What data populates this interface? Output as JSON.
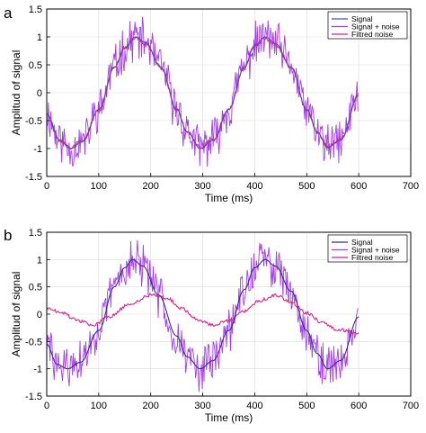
{
  "chart_data": [
    {
      "type": "line",
      "panel_label": "a",
      "xlabel": "Time (ms)",
      "ylabel": "Amplitud of signal",
      "xlim": [
        0,
        700
      ],
      "ylim": [
        -1.5,
        1.5
      ],
      "xticks": [
        0,
        100,
        200,
        300,
        400,
        500,
        600,
        700
      ],
      "yticks": [
        -1.5,
        -1,
        -0.5,
        0,
        0.5,
        1,
        1.5
      ],
      "legend_position": "top-right",
      "series": [
        {
          "name": "Signal",
          "color": "#5b4bb0",
          "x": [
            0,
            25,
            45,
            70,
            100,
            130,
            150,
            170,
            190,
            220,
            250,
            270,
            295,
            320,
            350,
            380,
            400,
            420,
            440,
            470,
            500,
            520,
            540,
            565,
            600
          ],
          "y": [
            -0.38,
            -0.85,
            -1.0,
            -0.87,
            -0.3,
            0.45,
            0.8,
            1.0,
            0.9,
            0.45,
            -0.3,
            -0.7,
            -1.0,
            -0.85,
            -0.3,
            0.45,
            0.85,
            1.0,
            0.88,
            0.45,
            -0.3,
            -0.7,
            -0.98,
            -0.85,
            -0.05
          ]
        },
        {
          "name": "Signal + noise",
          "color": "#a43cf0",
          "x": [
            0,
            25,
            45,
            70,
            100,
            130,
            150,
            170,
            190,
            220,
            250,
            270,
            295,
            320,
            350,
            380,
            400,
            420,
            440,
            470,
            500,
            520,
            540,
            565,
            600
          ],
          "y": [
            -0.38,
            -0.85,
            -1.0,
            -0.87,
            -0.3,
            0.45,
            0.8,
            1.0,
            0.9,
            0.45,
            -0.3,
            -0.7,
            -1.0,
            -0.85,
            -0.3,
            0.45,
            0.85,
            1.0,
            0.88,
            0.45,
            -0.3,
            -0.7,
            -0.98,
            -0.85,
            -0.05
          ],
          "noise_amplitude": 0.35
        },
        {
          "name": "Filtred noise",
          "color": "#e0208a",
          "x": [
            0,
            25,
            45,
            70,
            100,
            130,
            150,
            170,
            190,
            220,
            250,
            270,
            295,
            320,
            350,
            380,
            400,
            420,
            440,
            470,
            500,
            520,
            540,
            565,
            600
          ],
          "y": [
            -0.38,
            -0.85,
            -0.98,
            -0.85,
            -0.3,
            0.45,
            0.8,
            0.98,
            0.88,
            0.45,
            -0.3,
            -0.7,
            -0.98,
            -0.84,
            -0.3,
            0.45,
            0.84,
            0.98,
            0.86,
            0.45,
            -0.3,
            -0.7,
            -0.96,
            -0.84,
            -0.05
          ]
        }
      ]
    },
    {
      "type": "line",
      "panel_label": "b",
      "xlabel": "Time (ms)",
      "ylabel": "Amplitud of signal",
      "xlim": [
        0,
        700
      ],
      "ylim": [
        -1.5,
        1.5
      ],
      "xticks": [
        0,
        100,
        200,
        300,
        400,
        500,
        600,
        700
      ],
      "yticks": [
        -1.5,
        -1,
        -0.5,
        0,
        0.5,
        1,
        1.5
      ],
      "legend_position": "top-right",
      "series": [
        {
          "name": "Signal",
          "color": "#3a2a9a",
          "x": [
            0,
            20,
            40,
            65,
            100,
            130,
            150,
            165,
            185,
            215,
            250,
            270,
            295,
            320,
            350,
            380,
            400,
            420,
            440,
            470,
            500,
            520,
            540,
            565,
            600
          ],
          "y": [
            -0.55,
            -0.92,
            -1.0,
            -0.88,
            -0.3,
            0.5,
            0.85,
            1.0,
            0.88,
            0.35,
            -0.4,
            -0.78,
            -1.0,
            -0.85,
            -0.3,
            0.45,
            0.85,
            1.0,
            0.88,
            0.42,
            -0.3,
            -0.72,
            -1.0,
            -0.85,
            -0.05
          ]
        },
        {
          "name": "Signal + noise",
          "color": "#a43cf0",
          "x": [
            0,
            20,
            40,
            65,
            100,
            130,
            150,
            165,
            185,
            215,
            250,
            270,
            295,
            320,
            350,
            380,
            400,
            420,
            440,
            470,
            500,
            520,
            540,
            565,
            600
          ],
          "y": [
            -0.55,
            -0.92,
            -1.0,
            -0.88,
            -0.3,
            0.5,
            0.85,
            1.0,
            0.88,
            0.35,
            -0.4,
            -0.78,
            -1.0,
            -0.85,
            -0.3,
            0.45,
            0.85,
            1.0,
            0.88,
            0.42,
            -0.3,
            -0.72,
            -1.0,
            -0.85,
            -0.05
          ],
          "noise_amplitude": 0.35
        },
        {
          "name": "Filtred noise",
          "color": "#e0208a",
          "x": [
            0,
            30,
            60,
            90,
            120,
            160,
            200,
            230,
            260,
            290,
            320,
            350,
            380,
            410,
            440,
            470,
            500,
            530,
            560,
            600
          ],
          "y": [
            0.12,
            0.02,
            -0.12,
            -0.2,
            -0.05,
            0.18,
            0.35,
            0.3,
            0.1,
            -0.1,
            -0.2,
            -0.12,
            0.05,
            0.25,
            0.35,
            0.22,
            0.02,
            -0.15,
            -0.28,
            -0.35
          ]
        }
      ]
    }
  ]
}
